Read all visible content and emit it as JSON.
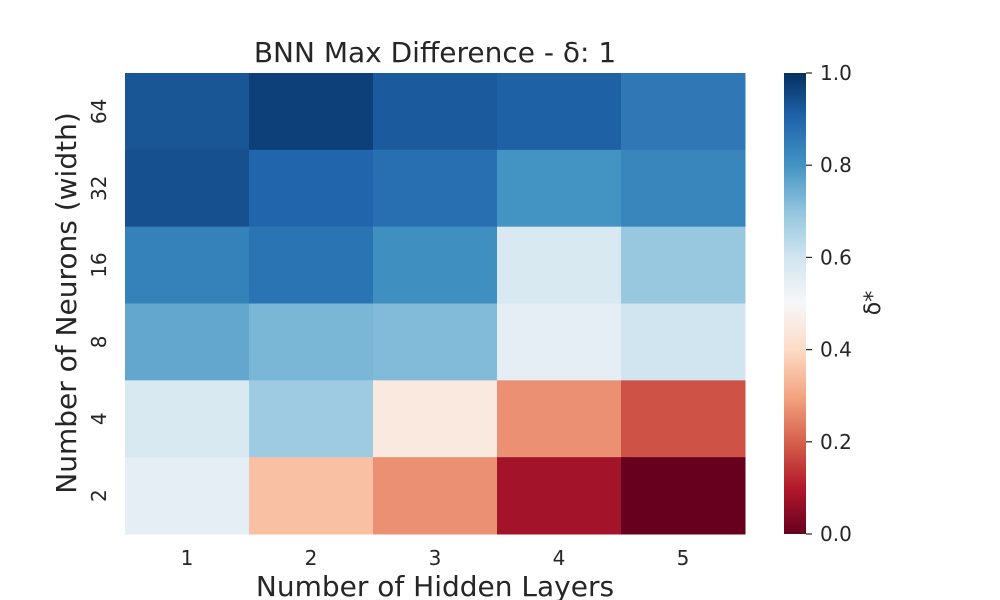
{
  "chart_data": {
    "type": "heatmap",
    "title": "BNN Max Difference - δ: 1",
    "xlabel": "Number of Hidden Layers",
    "ylabel": "Number of Neurons (width)",
    "x_categories": [
      "1",
      "2",
      "3",
      "4",
      "5"
    ],
    "y_categories": [
      "64",
      "32",
      "16",
      "8",
      "4",
      "2"
    ],
    "values": [
      [
        0.93,
        0.97,
        0.92,
        0.91,
        0.86
      ],
      [
        0.94,
        0.9,
        0.88,
        0.8,
        0.83
      ],
      [
        0.84,
        0.87,
        0.81,
        0.58,
        0.69
      ],
      [
        0.76,
        0.73,
        0.72,
        0.55,
        0.6
      ],
      [
        0.58,
        0.68,
        0.45,
        0.27,
        0.18
      ],
      [
        0.55,
        0.35,
        0.27,
        0.08,
        0.0
      ]
    ],
    "colorbar": {
      "label": "δ*",
      "range": [
        0,
        1
      ],
      "ticks": [
        "0.0",
        "0.2",
        "0.4",
        "0.6",
        "0.8",
        "1.0"
      ],
      "colormap": "RdBu"
    },
    "grid": false,
    "legend": "none"
  }
}
